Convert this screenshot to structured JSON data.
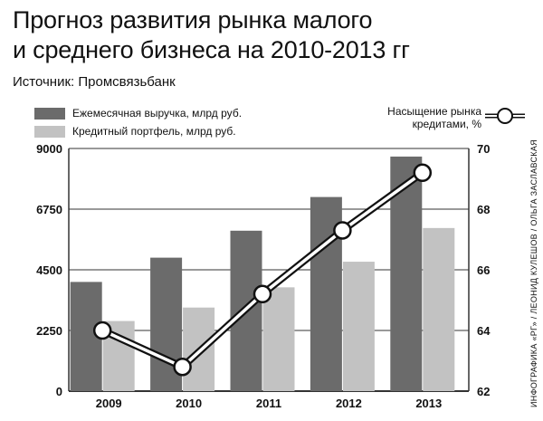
{
  "title_line1": "Прогноз развития рынка малого",
  "title_line2": "и среднего бизнеса на 2010-2013 гг",
  "source": "Источник: Промсвязьбанк",
  "credit": "ИНФОГРАФИКА «РГ» / ЛЕОНИД КУЛЕШОВ / ОЛЬГА ЗАСЛАВСКАЯ",
  "legend": {
    "revenue": "Ежемесячная выручка, млрд руб.",
    "portfolio": "Кредитный портфель, млрд руб.",
    "saturation_line1": "Насыщение рынка",
    "saturation_line2": "кредитами, %"
  },
  "colors": {
    "revenue": "#6b6b6b",
    "portfolio": "#c2c2c2",
    "line": "#111111",
    "grid": "#333333"
  },
  "chart_data": {
    "type": "bar",
    "categories": [
      "2009",
      "2010",
      "2011",
      "2012",
      "2013"
    ],
    "series": [
      {
        "name": "Ежемесячная выручка, млрд руб.",
        "values": [
          4050,
          4950,
          5950,
          7200,
          8700
        ],
        "axis": "left"
      },
      {
        "name": "Кредитный портфель, млрд руб.",
        "values": [
          2600,
          3100,
          3850,
          4800,
          6050
        ],
        "axis": "left"
      },
      {
        "name": "Насыщение рынка кредитами, %",
        "type": "line",
        "values": [
          64.0,
          62.8,
          65.2,
          67.3,
          69.2
        ],
        "axis": "right"
      }
    ],
    "ylim_left": [
      0,
      9000
    ],
    "yticks_left": [
      "0",
      "2250",
      "4500",
      "6750",
      "9000"
    ],
    "ylim_right": [
      62,
      70
    ],
    "yticks_right": [
      "62",
      "64",
      "66",
      "68",
      "70"
    ],
    "grid": true
  }
}
